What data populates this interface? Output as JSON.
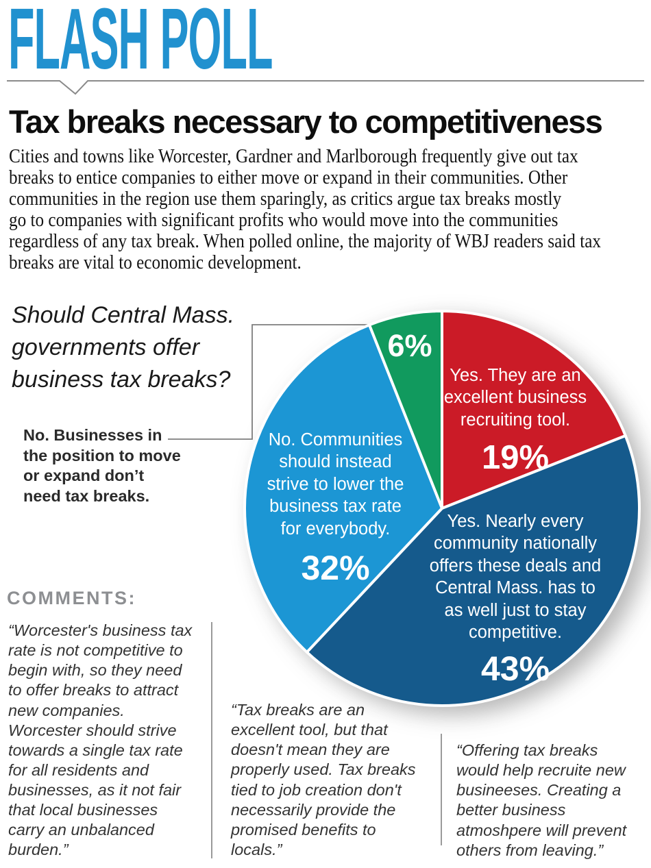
{
  "masthead": {
    "title": "FLASH POLL",
    "accent_color": "#2191cf"
  },
  "article": {
    "headline": "Tax breaks necessary to competitiveness",
    "intro_lines": [
      "Cities and towns like Worcester, Gardner and Marlborough frequently give out tax",
      "breaks to entice companies to either move or expand in their communities. Other",
      "communities in the region use them sparingly, as critics argue tax breaks mostly",
      "go to companies with significant profits who would move into the communities",
      "regardless of any tax break. When polled online, the majority of WBJ readers said tax",
      "breaks are vital to economic development."
    ]
  },
  "question": {
    "lines": [
      "Should Central Mass.",
      "governments offer",
      "business tax breaks?"
    ]
  },
  "callout": {
    "lines": [
      "No. Businesses in",
      "the position to move",
      "or expand don’t",
      "need tax breaks."
    ]
  },
  "chart_data": {
    "type": "pie",
    "title": "Should Central Mass. governments offer business tax breaks?",
    "start_angle_deg": 0,
    "direction": "clockwise",
    "legend_position": "in-slice",
    "border_color": "#ffffff",
    "slices": [
      {
        "id": "yes-recruiting",
        "label": "Yes. They are an excellent business recruiting tool.",
        "label_lines": [
          "Yes. They are an",
          "excellent business",
          "recruiting tool."
        ],
        "value": 19,
        "pct_label": "19%",
        "color": "#cb1b27"
      },
      {
        "id": "yes-competitive",
        "label": "Yes. Nearly every community nationally offers these deals and Central Mass. has to as well just to stay competitive.",
        "label_lines": [
          "Yes. Nearly every",
          "community nationally",
          "offers these deals and",
          "Central Mass. has to",
          "as well just to stay",
          "competitive."
        ],
        "value": 43,
        "pct_label": "43%",
        "color": "#155a8c"
      },
      {
        "id": "no-lower-rate",
        "label": "No. Communities should instead strive to lower the business tax rate for everybody.",
        "label_lines": [
          "No. Communities",
          "should instead",
          "strive to lower the",
          "business tax rate",
          "for everybody."
        ],
        "value": 32,
        "pct_label": "32%",
        "color": "#1c96d4"
      },
      {
        "id": "no-not-needed",
        "label": "No. Businesses in the position to move or expand don't need tax breaks.",
        "label_lines": [],
        "value": 6,
        "pct_label": "6%",
        "color": "#119a5e"
      }
    ]
  },
  "comments": {
    "heading": "COMMENTS:",
    "items": [
      {
        "lines": [
          "“Worcester's business tax",
          "rate is not competitive to",
          "begin with, so they need",
          "to offer breaks to attract",
          "new companies.",
          "Worcester should strive",
          "towards a single tax rate",
          "for all residents and",
          "businesses, as it not fair",
          "that local businesses",
          "carry an unbalanced",
          "burden.”"
        ]
      },
      {
        "lines": [
          "“Tax breaks are an",
          "excellent tool, but that",
          "doesn't mean they are",
          "properly used. Tax breaks",
          "tied to job creation don't",
          "necessarily provide the",
          "promised benefits to",
          "locals.”"
        ]
      },
      {
        "lines": [
          "“Offering tax breaks",
          "would help recruite new",
          "busineeses. Creating a",
          "better business",
          "atmoshpere will prevent",
          "others from leaving.”"
        ]
      }
    ]
  }
}
